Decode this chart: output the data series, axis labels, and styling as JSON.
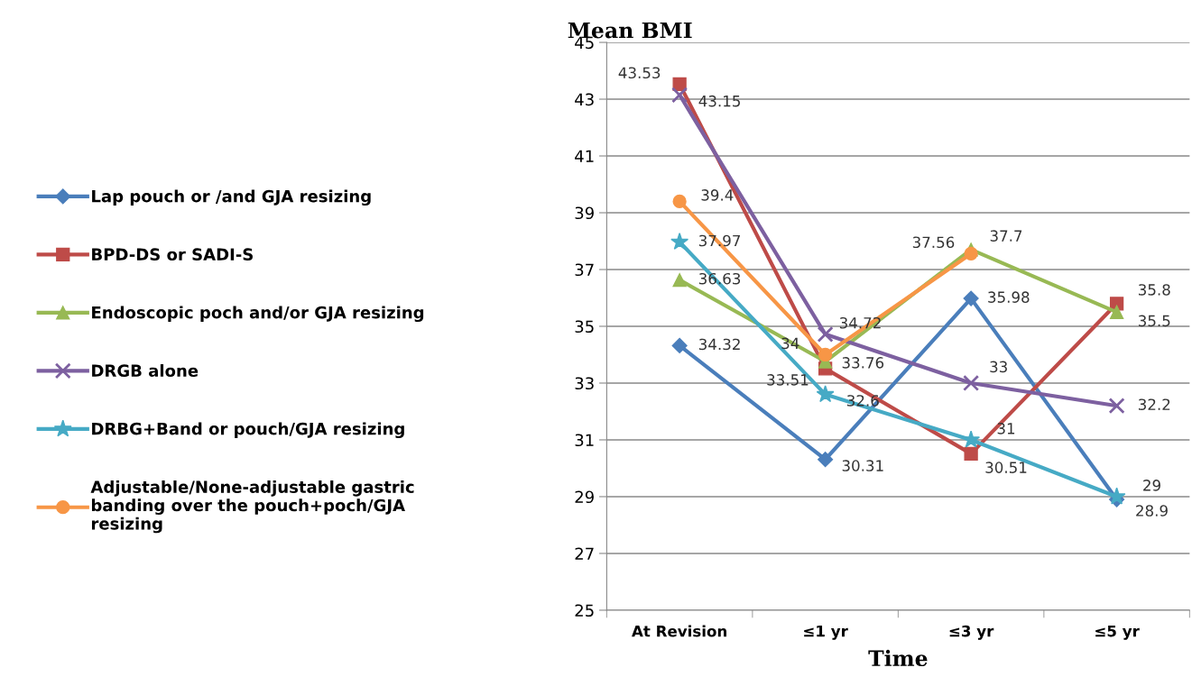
{
  "chart_data": {
    "type": "line",
    "ylabel": "Mean BMI",
    "xlabel": "Time",
    "categories": [
      "At Revision",
      "≤1 yr",
      "≤3 yr",
      "≤5 yr"
    ],
    "ylim": [
      25,
      45
    ],
    "yticks": [
      25,
      27,
      29,
      31,
      33,
      35,
      37,
      39,
      41,
      43,
      45
    ],
    "grid": "y",
    "legend": "left",
    "data_labels": true,
    "series": [
      {
        "name": "Lap pouch or /and GJA resizing",
        "color": "#4a7ebb",
        "marker": "diamond",
        "values": [
          34.32,
          30.31,
          35.98,
          28.9
        ]
      },
      {
        "name": "BPD-DS or SADI-S",
        "color": "#be4b48",
        "marker": "square",
        "values": [
          43.53,
          33.51,
          30.51,
          35.8
        ]
      },
      {
        "name": "Endoscopic poch and/or GJA resizing",
        "color": "#98b954",
        "marker": "triangle",
        "values": [
          36.63,
          33.76,
          37.7,
          35.5
        ]
      },
      {
        "name": "DRGB alone",
        "color": "#7d60a0",
        "marker": "cross",
        "values": [
          43.15,
          34.72,
          33,
          32.2
        ]
      },
      {
        "name": "DRBG+Band or pouch/GJA resizing",
        "color": "#46aac5",
        "marker": "star",
        "values": [
          37.97,
          32.6,
          31,
          29
        ]
      },
      {
        "name": "Adjustable/None-adjustable gastric\nbanding over the pouch+poch/GJA\nresizing",
        "color": "#f79646",
        "marker": "circle",
        "values": [
          39.4,
          34,
          37.56,
          null
        ]
      }
    ]
  }
}
